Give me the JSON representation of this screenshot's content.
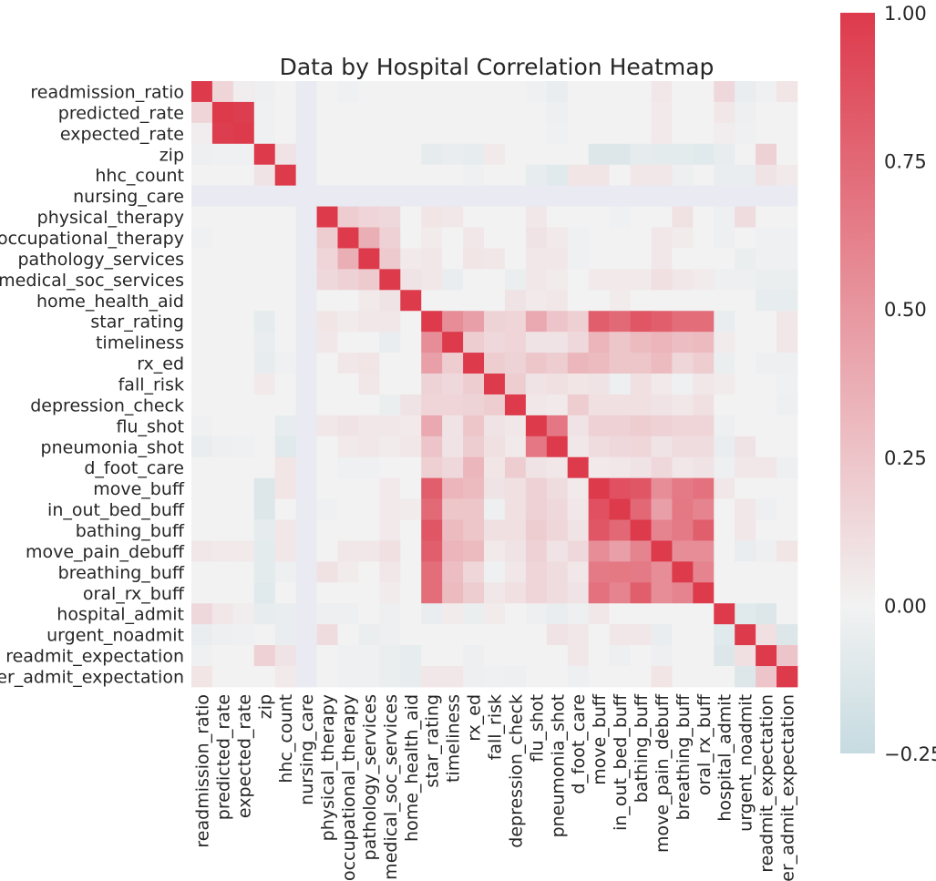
{
  "chart_data": {
    "type": "heatmap",
    "title": "Data by Hospital Correlation Heatmap",
    "labels": [
      "readmission_ratio",
      "predicted_rate",
      "expected_rate",
      "zip",
      "hhc_count",
      "nursing_care",
      "physical_therapy",
      "occupational_therapy",
      "pathology_services",
      "medical_soc_services",
      "home_health_aid",
      "star_rating",
      "timeliness",
      "rx_ed",
      "fall_risk",
      "depression_check",
      "flu_shot",
      "pneumonia_shot",
      "d_foot_care",
      "move_buff",
      "in_out_bed_buff",
      "bathing_buff",
      "move_pain_debuff",
      "breathing_buff",
      "oral_rx_buff",
      "hospital_admit",
      "urgent_noadmit",
      "readmit_expectation",
      "er_admit_expectation"
    ],
    "value_range": [
      -0.25,
      1.0
    ],
    "colorbar_ticks": [
      "1.00",
      "0.75",
      "0.50",
      "0.25",
      "0.00",
      "−0.25"
    ],
    "colorbar_tick_values": [
      1.0,
      0.75,
      0.5,
      0.25,
      0.0,
      -0.25
    ],
    "colors": {
      "low": "#c6dbe1",
      "mid": "#f2f2f2",
      "high": "#dd3a4c",
      "missing": "#eaeaf2"
    },
    "missing_index": 5,
    "matrix": [
      [
        1,
        0.16,
        0.03,
        -0.03,
        0,
        null,
        0,
        -0.02,
        0,
        0,
        0,
        0,
        0,
        0,
        0,
        0,
        -0.02,
        -0.05,
        0,
        0,
        0,
        0,
        0.06,
        0,
        0,
        0.14,
        -0.05,
        -0.02,
        0.07
      ],
      [
        0.16,
        1,
        0.98,
        -0.02,
        0,
        null,
        0,
        0,
        0,
        0,
        0,
        0,
        0,
        0,
        0,
        0,
        0,
        -0.03,
        0,
        0,
        0,
        0,
        0.05,
        0,
        0,
        0.06,
        -0.03,
        0,
        0
      ],
      [
        0.03,
        0.98,
        1,
        -0.02,
        0,
        null,
        0,
        0,
        0,
        0,
        0,
        0,
        0,
        0,
        0,
        0,
        0,
        -0.02,
        0,
        0,
        0,
        0,
        0.05,
        0,
        0,
        0.03,
        -0.02,
        0,
        0
      ],
      [
        -0.03,
        -0.02,
        -0.02,
        1,
        0.08,
        null,
        0,
        0,
        0,
        0,
        0,
        -0.07,
        -0.05,
        -0.06,
        0.05,
        0,
        0,
        0,
        0,
        -0.12,
        -0.12,
        -0.07,
        -0.08,
        -0.08,
        -0.1,
        -0.06,
        0,
        0.18,
        0
      ],
      [
        0,
        0,
        0,
        0.08,
        1,
        null,
        0,
        0,
        0,
        0,
        0,
        0,
        0,
        -0.02,
        0,
        0,
        -0.06,
        -0.1,
        0.07,
        0.07,
        0,
        0.06,
        0.06,
        -0.03,
        0,
        -0.05,
        -0.05,
        0.08,
        0.05
      ],
      [
        null,
        null,
        null,
        null,
        null,
        null,
        null,
        null,
        null,
        null,
        null,
        null,
        null,
        null,
        null,
        null,
        null,
        null,
        null,
        null,
        null,
        null,
        null,
        null,
        null,
        null,
        null,
        null,
        null
      ],
      [
        0,
        0,
        0,
        0,
        0,
        null,
        1,
        0.2,
        0.16,
        0.14,
        0,
        0.07,
        0.06,
        0,
        0,
        0,
        0.06,
        0,
        0,
        0,
        -0.02,
        0,
        0,
        0.09,
        0,
        -0.03,
        0.12,
        0,
        0
      ],
      [
        -0.02,
        0,
        0,
        0,
        0,
        null,
        0.2,
        1,
        0.37,
        0.18,
        0,
        0.04,
        0,
        0.06,
        0,
        0,
        0.08,
        0.05,
        -0.02,
        0,
        0,
        0,
        0.06,
        0.04,
        0,
        -0.03,
        0,
        -0.02,
        -0.02
      ],
      [
        0,
        0,
        0,
        0,
        0,
        null,
        0.16,
        0.37,
        1,
        0.22,
        0.05,
        0.06,
        0,
        0.07,
        0.06,
        0,
        0.06,
        0.06,
        -0.02,
        0,
        0,
        0,
        0.06,
        0,
        0,
        0,
        -0.04,
        -0.02,
        -0.02
      ],
      [
        0,
        0,
        0,
        0,
        0,
        null,
        0.14,
        0.18,
        0.22,
        1,
        0.08,
        0.06,
        -0.05,
        0,
        0,
        -0.04,
        0.06,
        0.04,
        0,
        0.05,
        0.05,
        0.05,
        0.1,
        0.06,
        0.04,
        -0.03,
        -0.03,
        -0.04,
        -0.04
      ],
      [
        0,
        0,
        0,
        0,
        0,
        null,
        0,
        0,
        0.05,
        0.08,
        1,
        0,
        0,
        0,
        0,
        0.08,
        0.05,
        0.06,
        0,
        0,
        0.04,
        0,
        0,
        0,
        0,
        0,
        0,
        -0.06,
        -0.06
      ],
      [
        0,
        0,
        0,
        -0.07,
        0,
        null,
        0.07,
        0.04,
        0.06,
        0.06,
        0,
        1,
        0.55,
        0.45,
        0.17,
        0.16,
        0.4,
        0.25,
        0.19,
        0.8,
        0.74,
        0.85,
        0.8,
        0.72,
        0.72,
        -0.05,
        0,
        0,
        0.06
      ],
      [
        0,
        0,
        0,
        -0.05,
        0,
        null,
        0.06,
        0,
        0,
        -0.05,
        0,
        0.55,
        1,
        0.2,
        0.14,
        0.16,
        0.08,
        0.08,
        0.14,
        0.33,
        0.24,
        0.3,
        0.33,
        0.28,
        0.3,
        0.04,
        0,
        0,
        0.06
      ],
      [
        0,
        0,
        0,
        -0.06,
        -0.02,
        null,
        0,
        0.06,
        0.07,
        0,
        0,
        0.45,
        0.2,
        1,
        0.2,
        0.17,
        0.24,
        0.2,
        0.32,
        0.3,
        0.24,
        0.24,
        0.3,
        0.15,
        0.2,
        -0.04,
        0,
        -0.03,
        -0.03
      ],
      [
        0,
        0,
        0,
        0.05,
        0,
        null,
        0,
        0,
        0.06,
        0,
        0,
        0.17,
        0.14,
        0.2,
        1,
        0.2,
        0.08,
        0.1,
        0.07,
        0.08,
        -0.03,
        0.1,
        0.05,
        -0.02,
        0.06,
        0.04,
        0,
        0,
        -0.02
      ],
      [
        0,
        0,
        0,
        0,
        0,
        null,
        0,
        0,
        0,
        -0.04,
        0.08,
        0.16,
        0.16,
        0.17,
        0.2,
        1,
        0.06,
        0.05,
        0.2,
        0.1,
        0.1,
        0.1,
        0.08,
        0.06,
        0.1,
        0,
        0,
        0,
        -0.03
      ],
      [
        -0.02,
        0,
        0,
        0,
        -0.06,
        null,
        0.06,
        0.08,
        0.06,
        0.06,
        0.05,
        0.4,
        0.08,
        0.24,
        0.08,
        0.06,
        1,
        0.67,
        0.08,
        0.18,
        0.18,
        0.2,
        0.18,
        0.16,
        0.16,
        -0.03,
        0,
        0,
        0
      ],
      [
        -0.05,
        -0.03,
        -0.02,
        0,
        -0.1,
        null,
        0,
        0.05,
        0.06,
        0.04,
        0.06,
        0.25,
        0.08,
        0.2,
        0.1,
        0.05,
        0.67,
        1,
        0.06,
        0.12,
        0.14,
        0.15,
        0.08,
        0.12,
        0.12,
        -0.05,
        0.08,
        0,
        0
      ],
      [
        0,
        0,
        0,
        0,
        0.07,
        null,
        0,
        -0.02,
        -0.02,
        0,
        0,
        0.19,
        0.14,
        0.32,
        0.07,
        0.2,
        0.08,
        0.06,
        1,
        0.05,
        0.06,
        0.08,
        0.14,
        0.06,
        0.08,
        -0.03,
        0.06,
        0.06,
        -0.03
      ],
      [
        0,
        0,
        0,
        -0.12,
        0.07,
        null,
        0,
        0,
        0,
        0.05,
        0,
        0.8,
        0.33,
        0.3,
        0.08,
        0.1,
        0.18,
        0.12,
        0.05,
        1,
        0.88,
        0.85,
        0.55,
        0.65,
        0.7,
        0.06,
        0,
        0,
        0
      ],
      [
        0,
        0,
        0,
        -0.12,
        0,
        null,
        -0.02,
        0,
        0,
        0.05,
        0.04,
        0.74,
        0.24,
        0.24,
        -0.03,
        0.1,
        0.18,
        0.14,
        0.06,
        0.88,
        1,
        0.75,
        0.45,
        0.66,
        0.6,
        0,
        0.06,
        -0.03,
        0
      ],
      [
        0,
        0,
        0,
        -0.07,
        0.06,
        null,
        0,
        0,
        0,
        0.05,
        0,
        0.85,
        0.3,
        0.24,
        0.1,
        0.1,
        0.2,
        0.15,
        0.08,
        0.85,
        0.75,
        1,
        0.6,
        0.65,
        0.8,
        0,
        0.06,
        0,
        0
      ],
      [
        0.06,
        0.05,
        0.05,
        -0.08,
        0.06,
        null,
        0,
        0.06,
        0.06,
        0.1,
        0,
        0.8,
        0.33,
        0.3,
        0.05,
        0.08,
        0.18,
        0.08,
        0.14,
        0.55,
        0.45,
        0.6,
        1,
        0.55,
        0.55,
        0,
        -0.05,
        -0.03,
        0.07
      ],
      [
        0,
        0,
        0,
        -0.08,
        -0.03,
        null,
        0.09,
        0.04,
        0,
        0.06,
        0,
        0.72,
        0.28,
        0.15,
        -0.02,
        0.06,
        0.16,
        0.12,
        0.06,
        0.65,
        0.66,
        0.65,
        0.55,
        1,
        0.6,
        0,
        0,
        0,
        0
      ],
      [
        0,
        0,
        0,
        -0.1,
        0,
        null,
        0,
        0,
        0,
        0.04,
        0,
        0.72,
        0.3,
        0.2,
        0.06,
        0.1,
        0.16,
        0.12,
        0.08,
        0.7,
        0.6,
        0.8,
        0.55,
        0.6,
        1,
        0,
        0,
        0,
        0
      ],
      [
        0.14,
        0.06,
        0.03,
        -0.06,
        -0.05,
        null,
        -0.03,
        -0.03,
        0,
        -0.03,
        0,
        -0.05,
        0.04,
        -0.04,
        0.04,
        0,
        -0.03,
        -0.05,
        -0.03,
        0.06,
        0,
        0,
        0,
        0,
        0,
        1,
        -0.1,
        -0.12,
        0
      ],
      [
        -0.05,
        -0.03,
        -0.02,
        0,
        -0.05,
        null,
        0.12,
        0,
        -0.04,
        -0.03,
        0,
        0,
        0,
        0,
        0,
        0,
        0,
        0.08,
        0.06,
        0,
        0.06,
        0.06,
        -0.05,
        0,
        0,
        -0.1,
        1,
        0.1,
        -0.12
      ],
      [
        -0.02,
        0,
        0,
        0.18,
        0.08,
        null,
        0,
        -0.02,
        -0.02,
        -0.04,
        -0.06,
        0,
        0,
        -0.03,
        0,
        0,
        0,
        0,
        0.06,
        0,
        -0.03,
        0,
        -0.03,
        0,
        0,
        -0.12,
        0.1,
        1,
        0.25
      ],
      [
        0.07,
        0,
        0,
        0,
        0.05,
        null,
        0,
        -0.02,
        -0.02,
        -0.04,
        -0.06,
        0.06,
        0.06,
        -0.03,
        -0.02,
        -0.03,
        0,
        0,
        -0.03,
        0,
        0,
        0,
        0.07,
        0,
        0,
        0,
        -0.12,
        0.25,
        1
      ]
    ]
  }
}
